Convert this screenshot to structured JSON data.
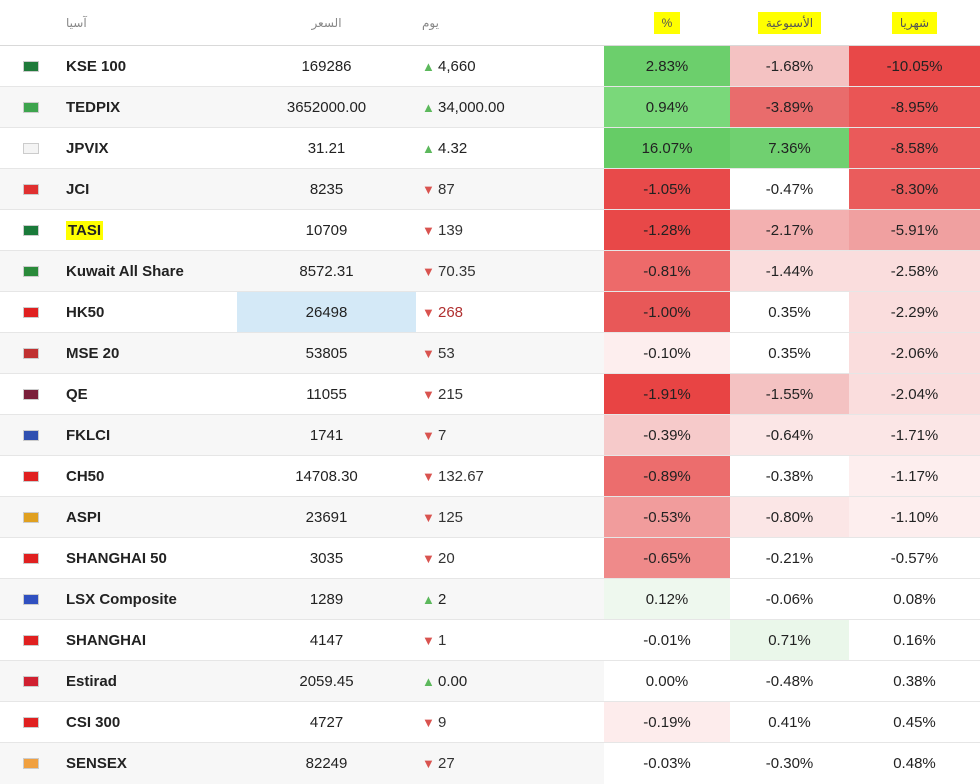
{
  "header": {
    "market": "آسيا",
    "price": "السعر",
    "day": "يوم",
    "pct": "%",
    "weekly": "الأسبوعية",
    "monthly": "شهريا"
  },
  "rows": [
    {
      "name": "KSE 100",
      "price": "169286",
      "dir": "up",
      "day": "4,660",
      "pct": "2.83%",
      "week": "-1.68%",
      "month": "-10.05%",
      "c_pct": "#6ccf6c",
      "c_week": "#f4c2c2",
      "c_month": "#e84848",
      "flag": "#1f7a3a"
    },
    {
      "name": "TEDPIX",
      "price": "3652000.00",
      "dir": "up",
      "day": "34,000.00",
      "pct": "0.94%",
      "week": "-3.89%",
      "month": "-8.95%",
      "c_pct": "#7ad87a",
      "c_week": "#e96c6c",
      "c_month": "#ea5555",
      "flag": "#3da44d"
    },
    {
      "name": "JPVIX",
      "price": "31.21",
      "dir": "up",
      "day": "4.32",
      "pct": "16.07%",
      "week": "7.36%",
      "month": "-8.58%",
      "c_pct": "#66cc66",
      "c_week": "#70d070",
      "c_month": "#ea5a5a",
      "flag": "#f4f4f4"
    },
    {
      "name": "JCI",
      "price": "8235",
      "dir": "down",
      "day": "87",
      "pct": "-1.05%",
      "week": "-0.47%",
      "month": "-8.30%",
      "c_pct": "#e84a4a",
      "c_week": "#ffffff",
      "c_month": "#ea5c5c",
      "flag": "#e03030"
    },
    {
      "name": "TASI",
      "price": "10709",
      "dir": "down",
      "day": "139",
      "pct": "-1.28%",
      "week": "-2.17%",
      "month": "-5.91%",
      "c_pct": "#e84848",
      "c_week": "#f3b0b0",
      "c_month": "#f0a0a0",
      "flag": "#1a7a3a",
      "name_hl": true
    },
    {
      "name": "Kuwait All Share",
      "price": "8572.31",
      "dir": "down",
      "day": "70.35",
      "pct": "-0.81%",
      "week": "-1.44%",
      "month": "-2.58%",
      "c_pct": "#ed6a6a",
      "c_week": "#fadddd",
      "c_month": "#fadddd",
      "flag": "#2a8a3a"
    },
    {
      "name": "HK50",
      "price": "26498",
      "dir": "down",
      "day": "268",
      "pct": "-1.00%",
      "week": "0.35%",
      "month": "-2.29%",
      "c_pct": "#e85858",
      "c_week": "#ffffff",
      "c_month": "#fadddd",
      "flag": "#e02020",
      "price_hl": true,
      "red": true
    },
    {
      "name": "MSE 20",
      "price": "53805",
      "dir": "down",
      "day": "53",
      "pct": "-0.10%",
      "week": "0.35%",
      "month": "-2.06%",
      "c_pct": "#fdeeee",
      "c_week": "#ffffff",
      "c_month": "#fadddd",
      "flag": "#c03030"
    },
    {
      "name": "QE",
      "price": "11055",
      "dir": "down",
      "day": "215",
      "pct": "-1.91%",
      "week": "-1.55%",
      "month": "-2.04%",
      "c_pct": "#e84444",
      "c_week": "#f4c2c2",
      "c_month": "#fadddd",
      "flag": "#7a1f3a"
    },
    {
      "name": "FKLCI",
      "price": "1741",
      "dir": "down",
      "day": "7",
      "pct": "-0.39%",
      "week": "-0.64%",
      "month": "-1.71%",
      "c_pct": "#f6caca",
      "c_week": "#fbe6e6",
      "c_month": "#fbe6e6",
      "flag": "#3050b0"
    },
    {
      "name": "CH50",
      "price": "14708.30",
      "dir": "down",
      "day": "132.67",
      "pct": "-0.89%",
      "week": "-0.38%",
      "month": "-1.17%",
      "c_pct": "#ec6d6d",
      "c_week": "#ffffff",
      "c_month": "#fdeeee",
      "flag": "#e02020"
    },
    {
      "name": "ASPI",
      "price": "23691",
      "dir": "down",
      "day": "125",
      "pct": "-0.53%",
      "week": "-0.80%",
      "month": "-1.10%",
      "c_pct": "#f19c9c",
      "c_week": "#fbe6e6",
      "c_month": "#fdeeee",
      "flag": "#e0a020"
    },
    {
      "name": "SHANGHAI 50",
      "price": "3035",
      "dir": "down",
      "day": "20",
      "pct": "-0.65%",
      "week": "-0.21%",
      "month": "-0.57%",
      "c_pct": "#ef8a8a",
      "c_week": "#ffffff",
      "c_month": "#ffffff",
      "flag": "#e02020"
    },
    {
      "name": "LSX Composite",
      "price": "1289",
      "dir": "up",
      "day": "2",
      "pct": "0.12%",
      "week": "-0.06%",
      "month": "0.08%",
      "c_pct": "#eef8ee",
      "c_week": "#ffffff",
      "c_month": "#ffffff",
      "flag": "#3050c0"
    },
    {
      "name": "SHANGHAI",
      "price": "4147",
      "dir": "down",
      "day": "1",
      "pct": "-0.01%",
      "week": "0.71%",
      "month": "0.16%",
      "c_pct": "#ffffff",
      "c_week": "#eaf7ea",
      "c_month": "#ffffff",
      "flag": "#e02020"
    },
    {
      "name": "Estirad",
      "price": "2059.45",
      "dir": "up",
      "day": "0.00",
      "pct": "0.00%",
      "week": "-0.48%",
      "month": "0.38%",
      "c_pct": "#ffffff",
      "c_week": "#ffffff",
      "c_month": "#ffffff",
      "flag": "#d02030"
    },
    {
      "name": "CSI 300",
      "price": "4727",
      "dir": "down",
      "day": "9",
      "pct": "-0.19%",
      "week": "0.41%",
      "month": "0.45%",
      "c_pct": "#fdecec",
      "c_week": "#ffffff",
      "c_month": "#ffffff",
      "flag": "#e02020"
    },
    {
      "name": "SENSEX",
      "price": "82249",
      "dir": "down",
      "day": "27",
      "pct": "-0.03%",
      "week": "-0.30%",
      "month": "0.48%",
      "c_pct": "#ffffff",
      "c_week": "#ffffff",
      "c_month": "#ffffff",
      "flag": "#f0a040"
    }
  ]
}
